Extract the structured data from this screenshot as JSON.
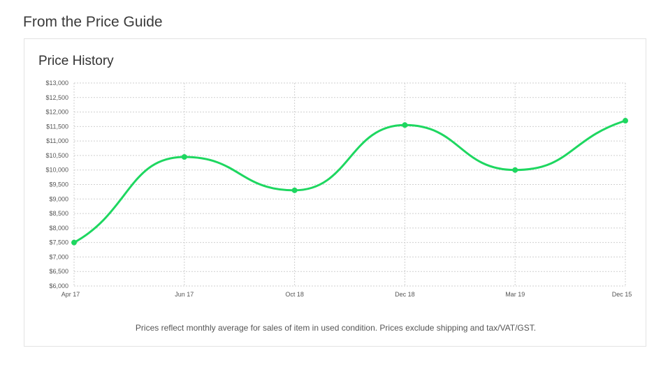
{
  "section_title": "From the Price Guide",
  "card": {
    "title": "Price History",
    "footnote": "Prices reflect monthly average for sales of item in used condition. Prices exclude shipping and tax/VAT/GST."
  },
  "colors": {
    "line": "#1ed760",
    "grid": "#cfcfcf"
  },
  "chart_data": {
    "type": "line",
    "title": "Price History",
    "categories": [
      "Apr 17",
      "Jun 17",
      "Oct 18",
      "Dec 18",
      "Mar 19",
      "Dec 15"
    ],
    "series": [
      {
        "values": [
          7500,
          10450,
          9300,
          11550,
          10000,
          11700
        ]
      }
    ],
    "ylim": [
      6000,
      13000
    ],
    "yticks": [
      6000,
      6500,
      7000,
      7500,
      8000,
      8500,
      9000,
      9500,
      10000,
      10500,
      11000,
      11500,
      12000,
      12500,
      13000
    ],
    "ytick_labels": [
      "$6,000",
      "$6,500",
      "$7,000",
      "$7,500",
      "$8,000",
      "$8,500",
      "$9,000",
      "$9,500",
      "$10,000",
      "$10,500",
      "$11,000",
      "$11,500",
      "$12,000",
      "$12,500",
      "$13,000"
    ],
    "grid": true,
    "smooth": true
  }
}
